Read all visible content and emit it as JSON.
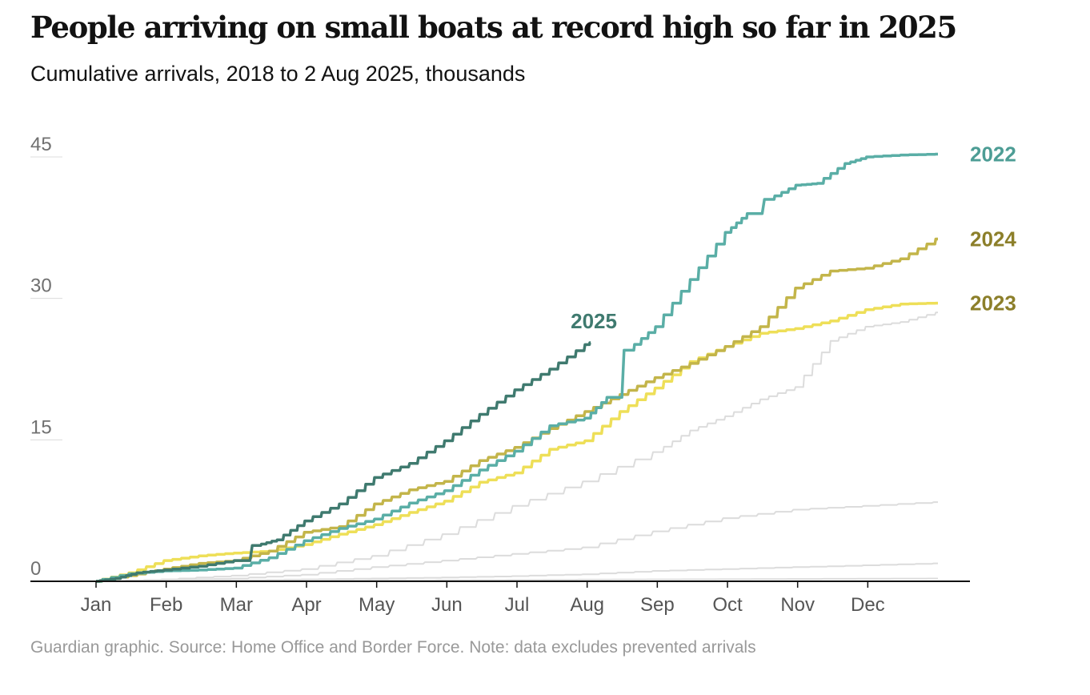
{
  "title": "People arriving on small boats at record high so far in 2025",
  "subtitle": "Cumulative arrivals, 2018 to 2 Aug 2025, thousands",
  "source": "Guardian graphic. Source: Home Office and Border Force. Note: data excludes prevented arrivals",
  "colors": {
    "2022": "#5aaea6",
    "2024": "#c3b54a",
    "2023": "#eedf58",
    "2025": "#3f7a6f",
    "background_years": "#dcdcdc",
    "label_2022": "#4d9d95",
    "label_2024": "#8c7f2a",
    "label_2023": "#8c7f2a",
    "label_2025": "#3f7a6f",
    "axis": "#121212",
    "grid": "#dcdcdc",
    "tick_label": "#707070"
  },
  "chart_data": {
    "type": "line",
    "title": "People arriving on small boats at record high so far in 2025",
    "subtitle": "Cumulative arrivals, 2018 to 2 Aug 2025, thousands",
    "x_axis": {
      "type": "month",
      "ticks": [
        "Jan",
        "Feb",
        "Mar",
        "Apr",
        "May",
        "Jun",
        "Jul",
        "Aug",
        "Sep",
        "Oct",
        "Nov",
        "Dec"
      ],
      "domain": [
        1,
        13
      ]
    },
    "y_axis": {
      "ticks": [
        0,
        15,
        30,
        45
      ],
      "ylim": [
        0,
        45
      ],
      "gridlines": true
    },
    "legend": "direct labels at line ends",
    "series": [
      {
        "name": "2022",
        "color_key": "2022",
        "labeled": true,
        "x": [
          1.0,
          1.5,
          2.0,
          2.5,
          3.0,
          3.5,
          4.0,
          4.5,
          5.0,
          5.5,
          6.0,
          6.5,
          7.0,
          7.5,
          8.0,
          8.3,
          8.6,
          9.0,
          9.5,
          10.0,
          10.3,
          10.6,
          11.0,
          11.3,
          11.7,
          12.0,
          12.5,
          13.0
        ],
        "y": [
          0,
          0.8,
          1.1,
          1.2,
          1.4,
          2.5,
          4.3,
          5.6,
          6.6,
          8.3,
          9.6,
          11.8,
          13.8,
          16.5,
          17.3,
          19.5,
          24.5,
          27.0,
          32.0,
          37.0,
          39.0,
          40.5,
          42.0,
          42.2,
          44.3,
          45.0,
          45.2,
          45.3
        ]
      },
      {
        "name": "2024",
        "color_key": "2024",
        "labeled": true,
        "x": [
          1.0,
          1.5,
          2.0,
          2.5,
          3.0,
          3.5,
          4.0,
          4.5,
          5.0,
          5.5,
          6.0,
          6.5,
          7.0,
          7.5,
          8.0,
          8.5,
          9.0,
          9.5,
          10.0,
          10.5,
          11.0,
          11.5,
          12.0,
          12.5,
          13.0
        ],
        "y": [
          0,
          0.6,
          1.3,
          1.9,
          2.2,
          3.2,
          5.2,
          5.8,
          8.2,
          9.7,
          10.6,
          12.8,
          14.2,
          16.2,
          18.0,
          19.8,
          21.6,
          23.1,
          24.9,
          27.0,
          31.1,
          32.9,
          33.2,
          34.2,
          36.3
        ]
      },
      {
        "name": "2023",
        "color_key": "2023",
        "labeled": true,
        "x": [
          1.0,
          1.5,
          2.0,
          2.5,
          3.0,
          3.5,
          4.0,
          4.5,
          5.0,
          5.5,
          6.0,
          6.5,
          7.0,
          7.5,
          8.0,
          8.5,
          9.0,
          9.5,
          10.0,
          10.5,
          11.0,
          11.5,
          12.0,
          12.5,
          13.0
        ],
        "y": [
          0,
          0.9,
          2.2,
          2.7,
          3.0,
          3.2,
          3.9,
          5.0,
          6.0,
          7.3,
          8.5,
          10.5,
          11.5,
          14.0,
          14.9,
          18.0,
          20.5,
          23.3,
          24.9,
          26.3,
          26.8,
          27.6,
          28.8,
          29.4,
          29.5
        ]
      },
      {
        "name": "2025",
        "color_key": "2025",
        "labeled": true,
        "x": [
          1.0,
          1.3,
          1.6,
          2.0,
          2.5,
          3.0,
          3.3,
          3.6,
          4.0,
          4.5,
          5.0,
          5.5,
          6.0,
          6.5,
          7.0,
          7.5,
          8.0,
          8.05
        ],
        "y": [
          0,
          0.3,
          0.9,
          1.2,
          1.6,
          2.2,
          3.8,
          4.4,
          6.4,
          8.2,
          11.0,
          12.5,
          14.9,
          17.7,
          20.3,
          22.5,
          25.1,
          25.3
        ]
      },
      {
        "name": "",
        "color_key": "background_years",
        "labeled": false,
        "x": [
          1.0,
          2.0,
          3.0,
          4.0,
          5.0,
          6.0,
          7.0,
          8.0,
          9.0,
          9.5,
          10.0,
          10.5,
          11.0,
          11.5,
          12.0,
          12.5,
          13.0
        ],
        "y": [
          0,
          0.2,
          0.6,
          1.3,
          2.7,
          5.0,
          8.0,
          10.6,
          13.7,
          16.0,
          17.5,
          19.3,
          20.6,
          25.5,
          27.0,
          27.5,
          28.5
        ]
      },
      {
        "name": "",
        "color_key": "background_years",
        "labeled": false,
        "x": [
          1.0,
          2.0,
          3.0,
          4.0,
          5.0,
          6.0,
          7.0,
          8.0,
          9.0,
          10.0,
          11.0,
          12.0,
          13.0
        ],
        "y": [
          0,
          0.1,
          0.3,
          0.7,
          1.5,
          2.2,
          2.9,
          3.6,
          5.3,
          6.7,
          7.6,
          8.0,
          8.4
        ]
      },
      {
        "name": "",
        "color_key": "background_years",
        "labeled": false,
        "x": [
          1.0,
          2.0,
          3.0,
          4.0,
          5.0,
          6.0,
          7.0,
          8.0,
          9.0,
          10.0,
          11.0,
          12.0,
          13.0
        ],
        "y": [
          0,
          0.05,
          0.1,
          0.2,
          0.3,
          0.4,
          0.55,
          0.75,
          1.1,
          1.3,
          1.5,
          1.7,
          1.9
        ]
      },
      {
        "name": "",
        "color_key": "background_years",
        "labeled": false,
        "x": [
          1.0,
          3.0,
          5.0,
          7.0,
          9.0,
          11.0,
          13.0
        ],
        "y": [
          0,
          0.05,
          0.1,
          0.15,
          0.2,
          0.25,
          0.3
        ]
      }
    ]
  }
}
